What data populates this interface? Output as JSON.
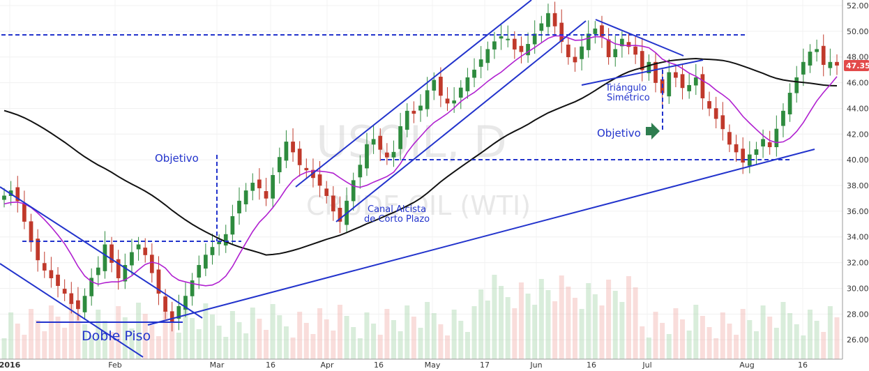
{
  "chart_data": {
    "type": "candlestick",
    "y_axis": {
      "min": 25,
      "max": 52.5,
      "ticks": [
        "52.00",
        "50.00",
        "48.00",
        "46.00",
        "44.00",
        "42.00",
        "40.00",
        "38.00",
        "36.00",
        "34.00",
        "32.00",
        "30.00",
        "28.00",
        "26.00"
      ]
    },
    "x_axis": {
      "tick_labels": [
        "2016",
        "Feb",
        "Mar",
        "16",
        "Apr",
        "16",
        "May",
        "17",
        "Jun",
        "16",
        "Jul",
        "Aug",
        "16"
      ]
    },
    "last_price": "47.35",
    "colors": {
      "up": "#2e8b3e",
      "down": "#c0392b",
      "annotation": "#2233cc",
      "ma_long": "#111111",
      "ma_short": "#b020d0",
      "price_label_bg": "#e24a4a"
    },
    "watermark": {
      "symbol": "USOIL, D",
      "subtitle": "CRUDE OIL (WTI)"
    },
    "annotations": {
      "double_bottom": "Doble Piso",
      "target_1": "Objetivo",
      "channel_l1": "Canal Alcista",
      "channel_l2": "de Corto Plazo",
      "triangle_l1": "Triángulo",
      "triangle_l2": "Simétrico",
      "target_2": "Objetivo"
    },
    "closes": [
      37.2,
      37.6,
      36.8,
      35.2,
      33.6,
      32.2,
      31.4,
      30.8,
      30.2,
      29.6,
      28.8,
      28.4,
      29.4,
      30.8,
      31.6,
      33.4,
      32.0,
      30.8,
      31.8,
      32.8,
      33.4,
      32.6,
      31.2,
      29.6,
      28.2,
      27.4,
      28.6,
      29.4,
      30.6,
      31.8,
      32.6,
      33.2,
      33.6,
      34.2,
      35.6,
      36.8,
      37.6,
      38.2,
      37.8,
      37.0,
      38.8,
      40.2,
      41.4,
      40.6,
      39.6,
      39.2,
      38.6,
      38.0,
      37.2,
      36.0,
      35.2,
      36.8,
      38.4,
      39.6,
      41.2,
      41.6,
      40.8,
      40.2,
      40.6,
      42.6,
      43.8,
      43.6,
      44.2,
      45.4,
      46.2,
      45.0,
      44.4,
      44.6,
      45.6,
      46.4,
      47.0,
      47.8,
      48.6,
      49.2,
      49.6,
      49.4,
      48.6,
      48.4,
      49.0,
      49.8,
      50.6,
      51.4,
      50.4,
      49.2,
      48.0,
      47.6,
      48.8,
      49.8,
      50.2,
      49.6,
      48.0,
      48.6,
      49.4,
      48.8,
      48.2,
      47.0,
      47.6,
      46.0,
      45.2,
      46.8,
      46.4,
      45.6,
      45.8,
      46.4,
      44.8,
      44.0,
      43.2,
      42.4,
      41.2,
      40.6,
      39.8,
      40.4,
      40.8,
      41.6,
      41.0,
      42.4,
      43.8,
      45.2,
      46.4,
      47.6,
      48.4,
      48.6,
      47.4,
      47.6,
      47.35
    ]
  }
}
